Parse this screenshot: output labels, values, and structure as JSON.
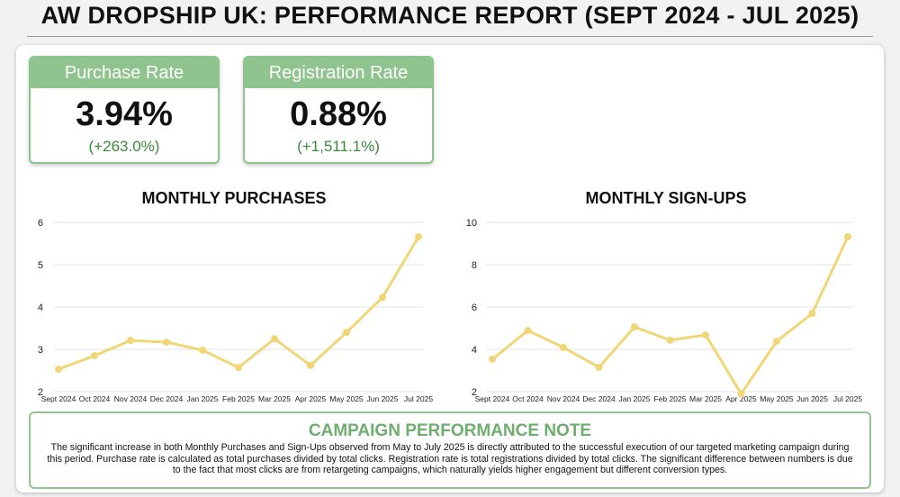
{
  "header": {
    "title": "AW DROPSHIP UK: PERFORMANCE REPORT (SEPT 2024 - JUL 2025)"
  },
  "kpis": [
    {
      "label": "Purchase Rate",
      "value": "3.94%",
      "change": "(+263.0%)"
    },
    {
      "label": "Registration Rate",
      "value": "0.88%",
      "change": "(+1,511.1%)"
    }
  ],
  "chart_data": [
    {
      "type": "line",
      "title": "MONTHLY PURCHASES",
      "categories": [
        "Sept 2024",
        "Oct 2024",
        "Nov 2024",
        "Dec 2024",
        "Jan 2025",
        "Feb 2025",
        "Mar 2025",
        "Apr 2025",
        "May 2025",
        "Jun 2025",
        "Jul 2025"
      ],
      "values": [
        2.53,
        2.85,
        3.21,
        3.17,
        2.98,
        2.57,
        3.25,
        2.62,
        3.4,
        4.23,
        5.66
      ],
      "color": "#f0d676",
      "ylim": [
        2,
        6
      ],
      "yticks": [
        2,
        3,
        4,
        5,
        6
      ],
      "grid": true
    },
    {
      "type": "line",
      "title": "MONTHLY SIGN-UPS",
      "categories": [
        "Sept 2024",
        "Oct 2024",
        "Nov 2024",
        "Dec 2024",
        "Jan 2025",
        "Feb 2025",
        "Mar 2025",
        "Apr 2025",
        "May 2025",
        "Jun 2025",
        "Jul 2025"
      ],
      "values": [
        3.53,
        4.89,
        4.09,
        3.15,
        5.06,
        4.43,
        4.68,
        1.9,
        4.38,
        5.7,
        9.32
      ],
      "color": "#f0d676",
      "ylim": [
        2,
        10
      ],
      "yticks": [
        2,
        4,
        6,
        8,
        10
      ],
      "grid": true
    }
  ],
  "note": {
    "title": "CAMPAIGN PERFORMANCE NOTE",
    "text": "The significant increase in both Monthly Purchases and Sign-Ups observed from May to July 2025 is directly attributed to the successful execution of our targeted marketing campaign during this period. Purchase rate is calculated as total purchases divided by total clicks. Registration rate is total registrations divided by total clicks. The significant difference between numbers is due to the fact that most clicks are from retargeting campaigns, which naturally yields higher engagement but different conversion types."
  }
}
